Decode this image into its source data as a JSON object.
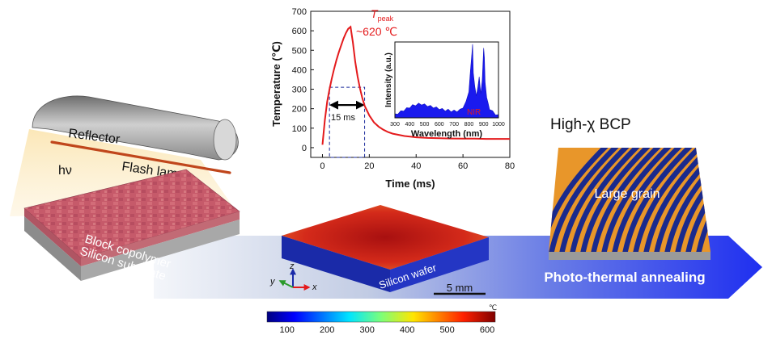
{
  "left_panel": {
    "reflector_label": "Reflector",
    "flash_lamp_label": "Flash lamp",
    "hv_label": "hν",
    "block_copolymer_label": "Block copolymer",
    "silicon_substrate_label": "Silicon substrate"
  },
  "center_panel": {
    "silicon_wafer_label": "Silicon wafer",
    "scale_bar_label": "5 mm",
    "axis_x": "x",
    "axis_y": "y",
    "axis_z": "z"
  },
  "right_panel": {
    "title": "High-χ BCP",
    "large_grain_label": "Large grain"
  },
  "arrow_label": "Photo-thermal annealing",
  "colorbar": {
    "unit": "℃",
    "ticks": [
      100,
      200,
      300,
      400,
      500,
      600
    ],
    "range": [
      50,
      620
    ]
  },
  "colors": {
    "arrow_start": "#e6ebf3",
    "arrow_end": "#2233ee",
    "curve": "#e41a1c",
    "spectrum": "#1a1aee",
    "bcp_orange": "#e8962a",
    "bcp_blue": "#1a2a8c"
  },
  "chart_data": [
    {
      "type": "line",
      "xlabel": "Time (ms)",
      "ylabel": "Temperature (℃)",
      "xlim": [
        -5,
        80
      ],
      "ylim": [
        -50,
        700
      ],
      "xticks": [
        0,
        20,
        40,
        60,
        80
      ],
      "yticks": [
        0,
        100,
        200,
        300,
        400,
        500,
        600,
        700
      ],
      "annotation_peak_symbol": "T",
      "annotation_peak_subscript": "peak",
      "annotation_peak_value": "~620 ℃",
      "annotation_duration": "15 ms",
      "duration_window": [
        3,
        18
      ],
      "duration_level": 310,
      "series": [
        {
          "x": [
            0,
            1,
            2,
            3,
            4,
            5,
            6,
            7,
            8,
            9,
            10,
            11,
            12,
            13,
            14,
            15,
            16,
            17,
            18,
            20,
            22,
            24,
            26,
            28,
            30,
            35,
            40,
            45,
            50,
            55,
            60,
            65,
            70,
            75,
            80
          ],
          "y": [
            15,
            140,
            235,
            300,
            355,
            405,
            450,
            490,
            525,
            560,
            588,
            610,
            620,
            540,
            440,
            365,
            305,
            255,
            215,
            165,
            130,
            108,
            92,
            80,
            72,
            60,
            53,
            50,
            48,
            47,
            46,
            46,
            45,
            45,
            45
          ]
        }
      ]
    },
    {
      "type": "area",
      "xlabel": "Wavelength (nm)",
      "ylabel": "Intensity (a.u.)",
      "xlim": [
        300,
        1000
      ],
      "xticks": [
        300,
        400,
        500,
        600,
        700,
        800,
        900,
        1000
      ],
      "annotation": "NIR",
      "series": [
        {
          "x": [
            300,
            320,
            340,
            360,
            380,
            400,
            420,
            440,
            460,
            480,
            500,
            520,
            540,
            560,
            580,
            600,
            620,
            640,
            660,
            680,
            700,
            720,
            740,
            760,
            780,
            800,
            810,
            820,
            825,
            830,
            840,
            850,
            860,
            870,
            880,
            890,
            900,
            905,
            910,
            920,
            930,
            940,
            960,
            980,
            1000
          ],
          "y": [
            4,
            6,
            8,
            10,
            12,
            14,
            16,
            17,
            18,
            18,
            17,
            16,
            15,
            14,
            13,
            12,
            11,
            10,
            10,
            9,
            9,
            9,
            10,
            14,
            20,
            35,
            60,
            85,
            95,
            60,
            40,
            30,
            38,
            55,
            30,
            50,
            90,
            80,
            45,
            28,
            18,
            12,
            8,
            5,
            3
          ]
        }
      ]
    }
  ]
}
